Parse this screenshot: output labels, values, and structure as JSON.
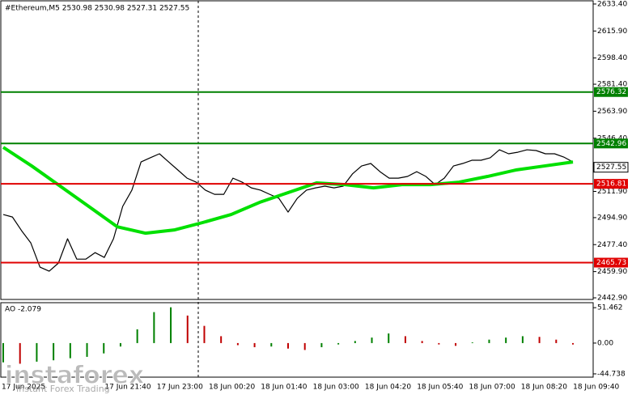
{
  "chart_data": [
    {
      "type": "line",
      "title": "#Ethereum,M5  2530.98 2530.98 2527.31 2527.55",
      "ylim": [
        2441.85,
        2636.0
      ],
      "yticks": [
        {
          "value": 2633.4,
          "label": "2633.40"
        },
        {
          "value": 2615.9,
          "label": "2615.90"
        },
        {
          "value": 2598.4,
          "label": "2598.40"
        },
        {
          "value": 2581.4,
          "label": "2581.40"
        },
        {
          "value": 2563.9,
          "label": "2563.90"
        },
        {
          "value": 2546.4,
          "label": "2546.40"
        },
        {
          "value": 2511.9,
          "label": "2511.90"
        },
        {
          "value": 2494.9,
          "label": "2494.90"
        },
        {
          "value": 2477.4,
          "label": "2477.40"
        },
        {
          "value": 2459.9,
          "label": "2459.90"
        },
        {
          "value": 2442.9,
          "label": "2442.90"
        }
      ],
      "time_labels": [
        "17 Jun 2025",
        "17 Jun 21:40",
        "17 Jun 23:00",
        "18 Jun 00:20",
        "18 Jun 01:40",
        "18 Jun 03:00",
        "18 Jun 04:20",
        "18 Jun 05:40",
        "18 Jun 07:00",
        "18 Jun 08:20",
        "18 Jun 09:40"
      ],
      "series": [
        {
          "name": "Price",
          "color": "#000000",
          "values": [
            2496.9,
            2495.3,
            2486.4,
            2478.5,
            2462.8,
            2460.2,
            2465.4,
            2481.2,
            2468.0,
            2468.0,
            2472.2,
            2469.1,
            2481.2,
            2502.2,
            2512.7,
            2531.0,
            2533.7,
            2536.3,
            2531.0,
            2525.8,
            2520.5,
            2517.9,
            2512.7,
            2510.0,
            2510.0,
            2520.5,
            2517.9,
            2514.2,
            2512.7,
            2510.0,
            2507.4,
            2498.5,
            2507.4,
            2512.7,
            2514.2,
            2515.3,
            2514.2,
            2515.3,
            2523.2,
            2528.4,
            2530.0,
            2524.7,
            2520.5,
            2520.5,
            2521.6,
            2524.7,
            2521.6,
            2516.3,
            2520.5,
            2528.4,
            2530.0,
            2532.1,
            2532.1,
            2533.7,
            2538.9,
            2536.3,
            2537.3,
            2538.9,
            2538.4,
            2536.3,
            2536.3,
            2534.2,
            2531.0
          ]
        },
        {
          "name": "MA",
          "color": "#00e000",
          "values": [
            2540.5,
            2528.4,
            2515.3,
            2502.2,
            2489.0,
            2484.8,
            2486.9,
            2491.7,
            2496.9,
            2504.8,
            2511.1,
            2517.4,
            2516.3,
            2514.2,
            2516.3,
            2516.3,
            2517.9,
            2521.6,
            2525.8,
            2528.4,
            2531.0
          ]
        }
      ],
      "levels": [
        {
          "value": 2576.32,
          "color": "#008000"
        },
        {
          "value": 2542.96,
          "color": "#008000"
        },
        {
          "value": 2516.81,
          "color": "#e00000"
        },
        {
          "value": 2465.73,
          "color": "#e00000"
        }
      ],
      "current_price": 2527.55
    },
    {
      "type": "bar",
      "title": "AO -2.079",
      "up_color": "#008000",
      "down_color": "#c00000",
      "ylim": [
        -49.5,
        58.7
      ],
      "yticks": [
        51.462,
        {
          "value": 0,
          "label": "0.00"
        },
        -44.738
      ],
      "values": [
        -28,
        -30,
        -27,
        -25,
        -22,
        -20,
        -15,
        -5,
        20,
        45,
        52,
        40,
        25,
        10,
        -3,
        -6,
        -5,
        -8,
        -10,
        -6,
        -2,
        3,
        8,
        14,
        10,
        3,
        -2,
        -4,
        1,
        5,
        8,
        10,
        9,
        5,
        -2.079
      ]
    }
  ],
  "watermark": {
    "brand": "instaforex",
    "tagline": "Instant Forex Trading"
  }
}
